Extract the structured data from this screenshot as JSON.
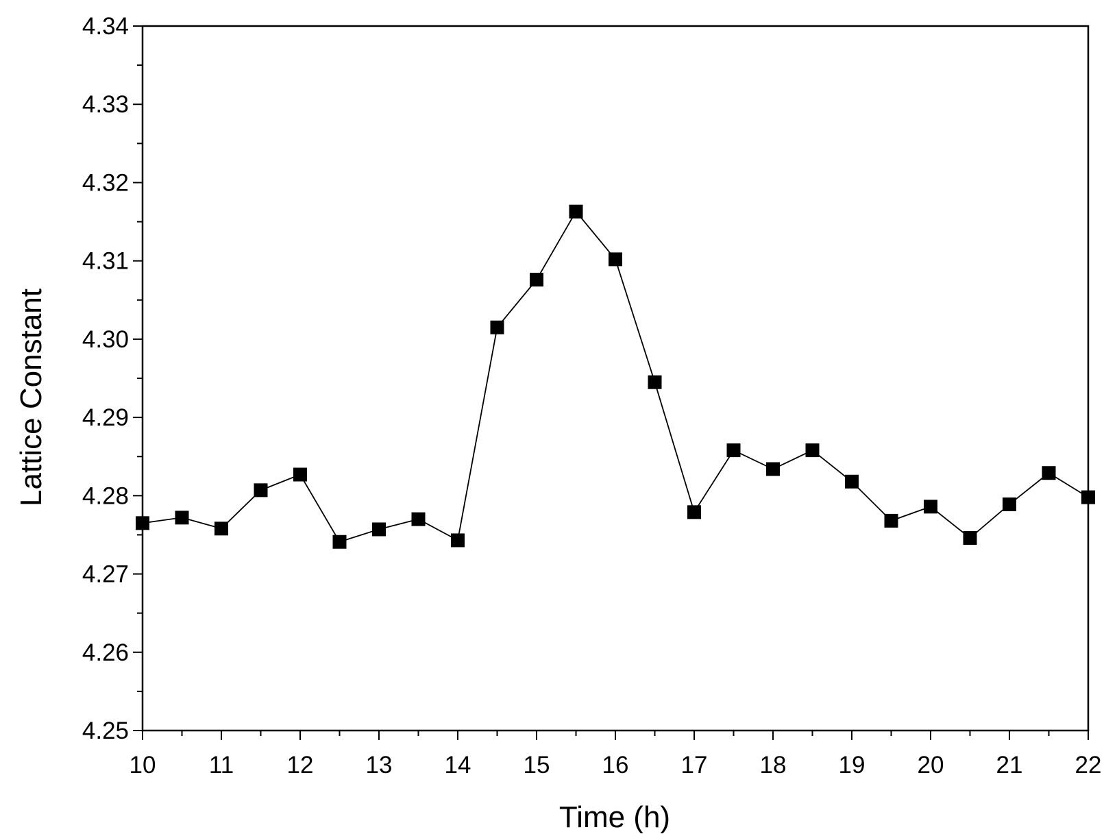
{
  "chart_data": {
    "type": "line",
    "xlabel": "Time (h)",
    "ylabel": "Lattice Constant",
    "xlim": [
      10,
      22
    ],
    "ylim": [
      4.25,
      4.34
    ],
    "x_ticks": [
      10,
      11,
      12,
      13,
      14,
      15,
      16,
      17,
      18,
      19,
      20,
      21,
      22
    ],
    "x_tick_labels": [
      "10",
      "11",
      "12",
      "13",
      "14",
      "15",
      "16",
      "17",
      "18",
      "19",
      "20",
      "21",
      "22"
    ],
    "y_ticks": [
      4.25,
      4.26,
      4.27,
      4.28,
      4.29,
      4.3,
      4.31,
      4.32,
      4.33,
      4.34
    ],
    "y_tick_labels": [
      "4.25",
      "4.26",
      "4.27",
      "4.28",
      "4.29",
      "4.30",
      "4.31",
      "4.32",
      "4.33",
      "4.34"
    ],
    "grid": false,
    "marker": "square",
    "series_color": "#000000",
    "series": [
      {
        "x": [
          10,
          10.5,
          11,
          11.5,
          12,
          12.5,
          13,
          13.5,
          14,
          14.5,
          15,
          15.5,
          16,
          16.5,
          17,
          17.5,
          18,
          18.5,
          19,
          19.5,
          20,
          20.5,
          21,
          21.5,
          22
        ],
        "y": [
          4.2765,
          4.2772,
          4.2758,
          4.2807,
          4.2827,
          4.2741,
          4.2757,
          4.277,
          4.2743,
          4.3015,
          4.3076,
          4.3163,
          4.3102,
          4.2945,
          4.2779,
          4.2858,
          4.2834,
          4.2858,
          4.2818,
          4.2768,
          4.2786,
          4.2746,
          4.2789,
          4.2829,
          4.2798
        ]
      }
    ]
  }
}
